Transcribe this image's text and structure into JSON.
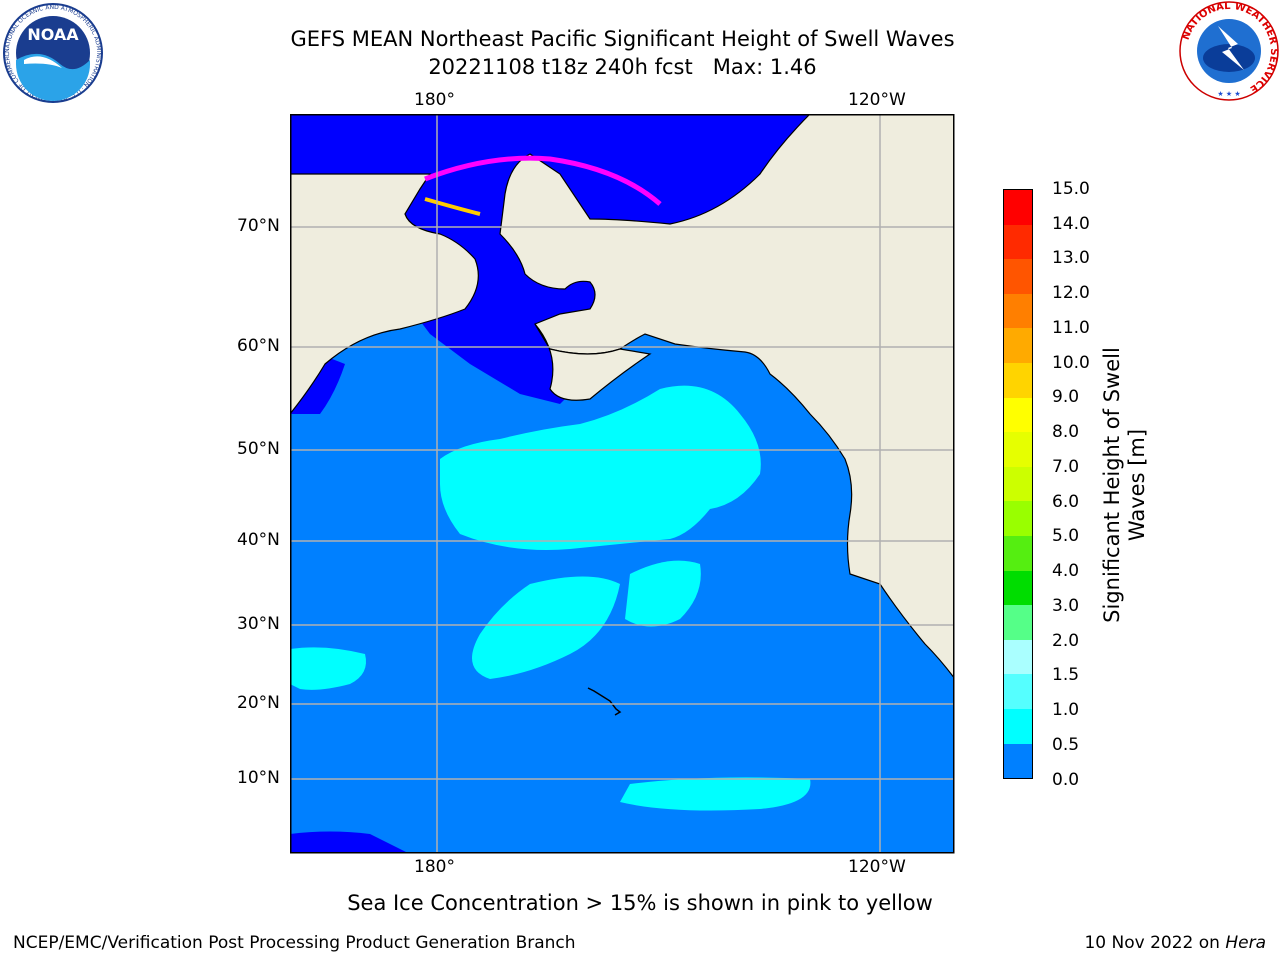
{
  "title": {
    "line1": "GEFS MEAN Northeast Pacific Significant Height of Swell Waves",
    "line2": "20221108 t18z 240h fcst   Max: 1.46"
  },
  "logos": {
    "noaa": {
      "text": "NOAA",
      "ring_text": "NATIONAL OCEANIC AND ATMOSPHERIC ADMINISTRATION · U.S. DEPARTMENT OF COMMERCE"
    },
    "nws": {
      "ring_text": "NATIONAL WEATHER SERVICE"
    }
  },
  "map": {
    "lon_labels": [
      "180°",
      "120°W"
    ],
    "lat_labels": [
      "70°N",
      "60°N",
      "50°N",
      "40°N",
      "30°N",
      "20°N",
      "10°N"
    ],
    "colors": {
      "land": "#efedde",
      "ocean": "#0080ff",
      "ocean_low": "#0000ff",
      "swell_1_1_5": "#00ffff",
      "ice_edge": "#ff00ff",
      "ice_yellow": "#ffcc00",
      "grid": "#b0b0b0"
    }
  },
  "colorbar": {
    "label": "Significant Height of Swell Waves [m]",
    "ticks": [
      "15.0",
      "14.0",
      "13.0",
      "12.0",
      "11.0",
      "10.0",
      "9.0",
      "8.0",
      "7.0",
      "6.0",
      "5.0",
      "4.0",
      "3.0",
      "2.0",
      "1.5",
      "1.0",
      "0.5",
      "0.0"
    ],
    "colors": [
      "#ff0000",
      "#ff2a00",
      "#ff5500",
      "#ff7f00",
      "#ffaa00",
      "#ffd400",
      "#ffff00",
      "#e6ff00",
      "#ccff00",
      "#99ff00",
      "#55ee11",
      "#00dd00",
      "#55ff88",
      "#aaffff",
      "#55ffff",
      "#00ffff",
      "#0080ff",
      "#0000ff"
    ]
  },
  "footer": {
    "note": "Sea Ice Concentration > 15% is shown in pink to yellow",
    "left": "NCEP/EMC/Verification Post Processing Product Generation Branch",
    "right_prefix": "10 Nov 2022 on ",
    "right_italic": "Hera"
  }
}
